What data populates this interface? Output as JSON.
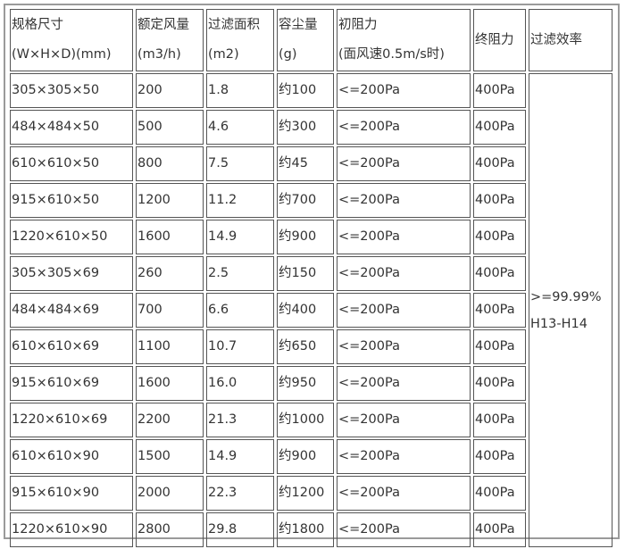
{
  "headers": [
    {
      "line1": "规格尺寸",
      "line2": "(W×H×D)(mm)"
    },
    {
      "line1": "额定风量",
      "line2": "(m3/h)"
    },
    {
      "line1": "过滤面积",
      "line2": "(m2)"
    },
    {
      "line1": "容尘量",
      "line2": "(g)"
    },
    {
      "line1": "初阻力",
      "line2": "(面风速0.5m/s时)"
    },
    {
      "line1": "终阻力",
      "line2": ""
    },
    {
      "line1": "过滤效率",
      "line2": ""
    }
  ],
  "rows": [
    [
      "305×305×50",
      "200",
      "1.8",
      "约100",
      "<=200Pa",
      "400Pa"
    ],
    [
      "484×484×50",
      "500",
      "4.6",
      "约300",
      "<=200Pa",
      "400Pa"
    ],
    [
      "610×610×50",
      "800",
      "7.5",
      "约45",
      "<=200Pa",
      "400Pa"
    ],
    [
      "915×610×50",
      "1200",
      "11.2",
      "约700",
      "<=200Pa",
      "400Pa"
    ],
    [
      "1220×610×50",
      "1600",
      "14.9",
      "约900",
      "<=200Pa",
      "400Pa"
    ],
    [
      "305×305×69",
      "260",
      "2.5",
      "约150",
      "<=200Pa",
      "400Pa"
    ],
    [
      "484×484×69",
      "700",
      "6.6",
      "约400",
      "<=200Pa",
      "400Pa"
    ],
    [
      "610×610×69",
      "1100",
      "10.7",
      "约650",
      "<=200Pa",
      "400Pa"
    ],
    [
      "915×610×69",
      "1600",
      "16.0",
      "约950",
      "<=200Pa",
      "400Pa"
    ],
    [
      "1220×610×69",
      "2200",
      "21.3",
      "约1000",
      "<=200Pa",
      "400Pa"
    ],
    [
      "610×610×90",
      "1500",
      "14.9",
      "约900",
      "<=200Pa",
      "400Pa"
    ],
    [
      "915×610×90",
      "2000",
      "22.3",
      "约1200",
      "<=200Pa",
      "400Pa"
    ],
    [
      "1220×610×90",
      "2800",
      "29.8",
      "约1800",
      "<=200Pa",
      "400Pa"
    ]
  ],
  "efficiency": {
    "line1": ">=99.99%",
    "line2": "H13-H14"
  }
}
